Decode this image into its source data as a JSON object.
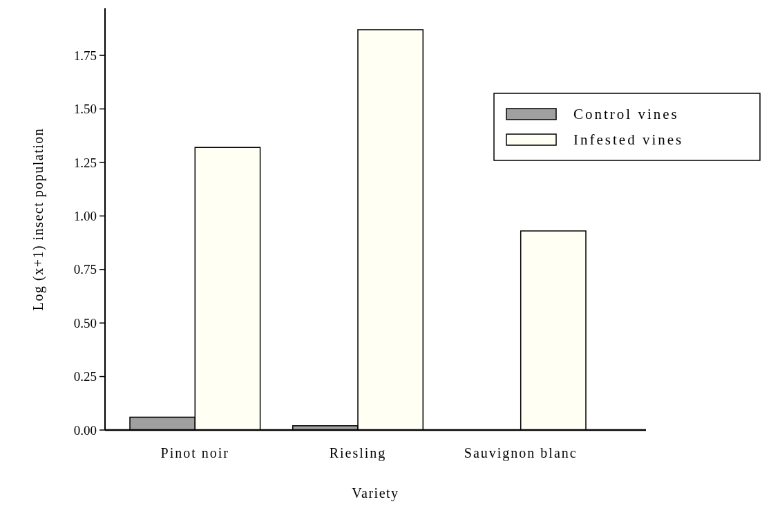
{
  "chart_data": {
    "type": "bar",
    "xlabel": "Variety",
    "ylabel": "Log (x+1) insect population",
    "categories": [
      "Pinot noir",
      "Riesling",
      "Sauvignon blanc"
    ],
    "series": [
      {
        "name": "Control vines",
        "color": "#a0a0a0",
        "values": [
          0.06,
          0.02,
          0
        ]
      },
      {
        "name": "Infested vines",
        "color": "#fffff4",
        "values": [
          1.32,
          1.87,
          0.93
        ]
      }
    ],
    "ylim": [
      0,
      1.97
    ],
    "yticks": [
      {
        "value": 0,
        "label": "0.00"
      },
      {
        "value": 0.25,
        "label": "0.25"
      },
      {
        "value": 0.5,
        "label": "0.50"
      },
      {
        "value": 0.75,
        "label": "0.75"
      },
      {
        "value": 1,
        "label": "1.00"
      },
      {
        "value": 1.25,
        "label": "1.25"
      },
      {
        "value": 1.5,
        "label": "1.50"
      },
      {
        "value": 1.75,
        "label": "1.75"
      }
    ],
    "legend": "right",
    "grid": false
  }
}
